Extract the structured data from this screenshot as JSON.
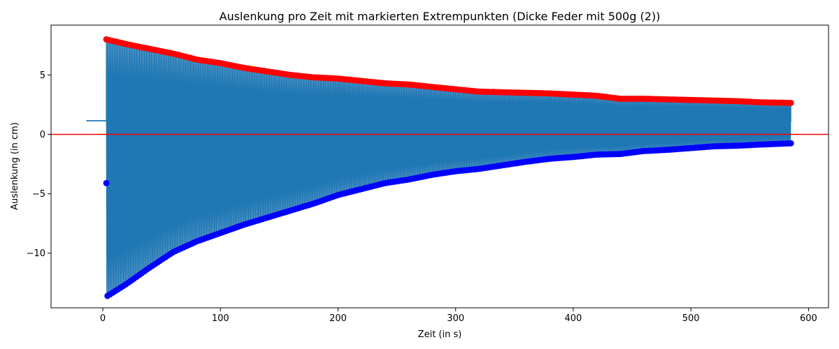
{
  "chart_data": {
    "type": "line",
    "title": "Auslenkung pro Zeit mit markierten Extrempunkten (Dicke Feder mit 500g (2))",
    "xlabel": "Zeit (in s)",
    "ylabel": "Auslenkung (in cm)",
    "xlim": [
      -44,
      617
    ],
    "ylim": [
      -14.6,
      9.2
    ],
    "xticks": [
      0,
      100,
      200,
      300,
      400,
      500,
      600
    ],
    "yticks": [
      -10,
      -5,
      0,
      5
    ],
    "reference_line": {
      "y": 0,
      "color": "#ff0000"
    },
    "series": [
      {
        "kind": "oscillation",
        "color": "#1f77b4",
        "pre_start": {
          "x": [
            -14,
            3
          ],
          "y": 1.15
        },
        "start_x": 3,
        "end_x": 585,
        "end_y": 1.1,
        "equilibrium": 1.15
      },
      {
        "kind": "maxima",
        "color": "#ff0000",
        "x": [
          3,
          20,
          40,
          60,
          80,
          100,
          120,
          140,
          160,
          180,
          200,
          220,
          240,
          260,
          280,
          300,
          320,
          340,
          360,
          380,
          400,
          420,
          440,
          460,
          480,
          500,
          520,
          540,
          560,
          585
        ],
        "y": [
          8.0,
          7.6,
          7.2,
          6.8,
          6.3,
          6.0,
          5.6,
          5.3,
          5.0,
          4.8,
          4.7,
          4.5,
          4.3,
          4.2,
          4.0,
          3.8,
          3.6,
          3.55,
          3.5,
          3.45,
          3.35,
          3.25,
          3.0,
          3.0,
          2.95,
          2.9,
          2.85,
          2.8,
          2.7,
          2.65
        ]
      },
      {
        "kind": "minima",
        "color": "#0000ff",
        "x": [
          4,
          20,
          40,
          60,
          80,
          100,
          120,
          140,
          160,
          180,
          200,
          220,
          240,
          260,
          280,
          300,
          320,
          340,
          360,
          380,
          400,
          420,
          440,
          460,
          480,
          500,
          520,
          540,
          560,
          585
        ],
        "y": [
          -13.6,
          -12.6,
          -11.2,
          -9.9,
          -9.0,
          -8.3,
          -7.6,
          -7.0,
          -6.4,
          -5.8,
          -5.1,
          -4.6,
          -4.1,
          -3.8,
          -3.4,
          -3.1,
          -2.9,
          -2.6,
          -2.3,
          -2.05,
          -1.9,
          -1.7,
          -1.65,
          -1.4,
          -1.3,
          -1.15,
          -1.0,
          -0.95,
          -0.85,
          -0.75
        ]
      },
      {
        "kind": "minima-outlier",
        "color": "#0000ff",
        "x": [
          3
        ],
        "y": [
          -4.1
        ]
      }
    ]
  }
}
